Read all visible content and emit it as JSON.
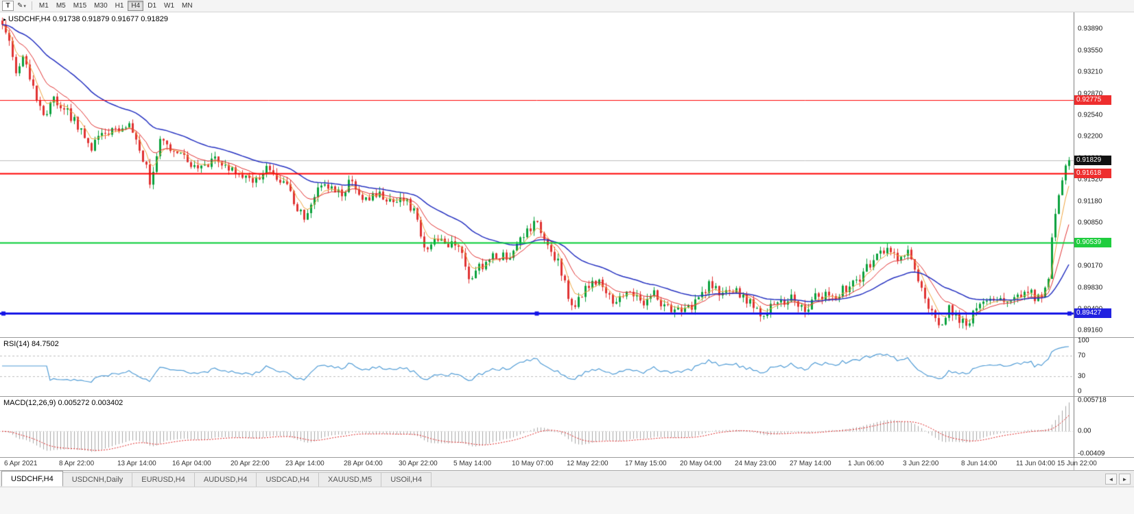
{
  "toolbar": {
    "template_button": "T",
    "draw_tool_glyph": "✎",
    "draw_tool_caret": "▾",
    "timeframes": [
      "M1",
      "M5",
      "M15",
      "M30",
      "H1",
      "H4",
      "D1",
      "W1",
      "MN"
    ],
    "active_timeframe": "H4"
  },
  "chart": {
    "marker": "▸",
    "title": "USDCHF,H4",
    "ohlc_text": "0.91738 0.91879 0.91677 0.91829",
    "hlines": [
      {
        "price": 0.91829,
        "color": "#bcbcbc",
        "width": 1,
        "under": true
      },
      {
        "price": 0.92775,
        "color": "#ff0000",
        "width": 1
      },
      {
        "price": 0.91618,
        "color": "#ff0000",
        "width": 2
      },
      {
        "price": 0.90539,
        "color": "#00cc33",
        "width": 2
      },
      {
        "price": 0.89427,
        "color": "#1414e6",
        "width": 3,
        "handles": true
      }
    ]
  },
  "price_axis": {
    "labels": [
      "0.93890",
      "0.93550",
      "0.93210",
      "0.92870",
      "0.92540",
      "0.92200",
      "0.91860",
      "0.91520",
      "0.91180",
      "0.90850",
      "0.90510",
      "0.90170",
      "0.89830",
      "0.89490",
      "0.89160"
    ],
    "badges": [
      {
        "text": "0.92775",
        "bg": "#ee2e2e",
        "fg": "#ffffff"
      },
      {
        "text": "0.91829",
        "bg": "#111111",
        "fg": "#ffffff"
      },
      {
        "text": "0.91618",
        "bg": "#ee2e2e",
        "fg": "#ffffff"
      },
      {
        "text": "0.90539",
        "bg": "#1fcd3e",
        "fg": "#ffffff"
      },
      {
        "text": "0.89427",
        "bg": "#2222e0",
        "fg": "#ffffff"
      }
    ]
  },
  "rsi": {
    "name": "RSI(14)",
    "value": "84.7502",
    "axis_labels": [
      "100",
      "70",
      "30",
      "0"
    ],
    "levels": [
      70,
      30
    ],
    "line_color": "#4f9bd5"
  },
  "macd": {
    "name": "MACD(12,26,9)",
    "values": "0.005272 0.003402",
    "axis_labels": [
      "0.005718",
      "0.00",
      "-0.00409"
    ],
    "histogram_color": "#a6a6a6",
    "signal_color": "#dd2222",
    "scale": {
      "max": 0.006,
      "min": -0.0045
    }
  },
  "time_axis": {
    "labels": [
      {
        "label": "6 Apr 2021",
        "bar": 1
      },
      {
        "label": "8 Apr 22:00",
        "bar": 17
      },
      {
        "label": "13 Apr 14:00",
        "bar": 34
      },
      {
        "label": "16 Apr 04:00",
        "bar": 50
      },
      {
        "label": "20 Apr 22:00",
        "bar": 67
      },
      {
        "label": "23 Apr 14:00",
        "bar": 83
      },
      {
        "label": "28 Apr 04:00",
        "bar": 100
      },
      {
        "label": "30 Apr 22:00",
        "bar": 116
      },
      {
        "label": "5 May 14:00",
        "bar": 132
      },
      {
        "label": "10 May 07:00",
        "bar": 149
      },
      {
        "label": "12 May 22:00",
        "bar": 165
      },
      {
        "label": "17 May 15:00",
        "bar": 182
      },
      {
        "label": "20 May 04:00",
        "bar": 198
      },
      {
        "label": "24 May 23:00",
        "bar": 214
      },
      {
        "label": "27 May 14:00",
        "bar": 230
      },
      {
        "label": "1 Jun 06:00",
        "bar": 247
      },
      {
        "label": "3 Jun 22:00",
        "bar": 263
      },
      {
        "label": "8 Jun 14:00",
        "bar": 280
      },
      {
        "label": "11 Jun 04:00",
        "bar": 296
      },
      {
        "label": "15 Jun 22:00",
        "bar": 308
      }
    ]
  },
  "tabs": {
    "items": [
      {
        "label": "USDCHF,H4",
        "active": true
      },
      {
        "label": "USDCNH,Daily",
        "active": false
      },
      {
        "label": "EURUSD,H4",
        "active": false
      },
      {
        "label": "AUDUSD,H4",
        "active": false
      },
      {
        "label": "USDCAD,H4",
        "active": false
      },
      {
        "label": "XAUUSD,M5",
        "active": false
      },
      {
        "label": "USOil,H4",
        "active": false
      }
    ],
    "left_arrow": "◄",
    "right_arrow": "►"
  },
  "chart_data": {
    "type": "candlestick",
    "symbol": "USDCHF",
    "timeframe": "H4",
    "bars": 312,
    "bar_spacing": 5,
    "price_scale": {
      "top": 0.9415,
      "bottom": 0.8905
    },
    "last_bar": {
      "open": 0.91738,
      "high": 0.91879,
      "low": 0.91677,
      "close": 0.91829
    },
    "candle_colors": {
      "up": "#0aa13c",
      "down": "#e03232"
    },
    "moving_averages": [
      {
        "period": 5,
        "type": "ema",
        "color": "#eda33c",
        "width": 1
      },
      {
        "period": 12,
        "type": "ema",
        "color": "#e03030",
        "width": 1
      },
      {
        "period": 34,
        "type": "ema",
        "color": "#2430c0",
        "width": 1.5
      }
    ],
    "anchors": [
      [
        0,
        0.9402
      ],
      [
        2,
        0.9368
      ],
      [
        4,
        0.9318
      ],
      [
        6,
        0.9352
      ],
      [
        9,
        0.9296
      ],
      [
        12,
        0.9252
      ],
      [
        15,
        0.928
      ],
      [
        19,
        0.926
      ],
      [
        23,
        0.9228
      ],
      [
        26,
        0.9202
      ],
      [
        29,
        0.9232
      ],
      [
        33,
        0.9226
      ],
      [
        37,
        0.9242
      ],
      [
        40,
        0.9205
      ],
      [
        43,
        0.915
      ],
      [
        46,
        0.921
      ],
      [
        50,
        0.92
      ],
      [
        54,
        0.9178
      ],
      [
        58,
        0.917
      ],
      [
        62,
        0.919
      ],
      [
        66,
        0.9174
      ],
      [
        70,
        0.916
      ],
      [
        74,
        0.915
      ],
      [
        77,
        0.9174
      ],
      [
        80,
        0.915
      ],
      [
        83,
        0.914
      ],
      [
        86,
        0.911
      ],
      [
        88,
        0.9086
      ],
      [
        91,
        0.9128
      ],
      [
        95,
        0.9146
      ],
      [
        99,
        0.9128
      ],
      [
        102,
        0.9155
      ],
      [
        105,
        0.9116
      ],
      [
        109,
        0.913
      ],
      [
        113,
        0.912
      ],
      [
        116,
        0.9126
      ],
      [
        120,
        0.9106
      ],
      [
        123,
        0.904
      ],
      [
        127,
        0.9058
      ],
      [
        130,
        0.9046
      ],
      [
        133,
        0.9052
      ],
      [
        136,
        0.8996
      ],
      [
        139,
        0.9014
      ],
      [
        143,
        0.9034
      ],
      [
        146,
        0.903
      ],
      [
        149,
        0.9038
      ],
      [
        152,
        0.9062
      ],
      [
        156,
        0.9086
      ],
      [
        160,
        0.9045
      ],
      [
        163,
        0.9008
      ],
      [
        166,
        0.895
      ],
      [
        169,
        0.8972
      ],
      [
        172,
        0.8998
      ],
      [
        176,
        0.898
      ],
      [
        179,
        0.8958
      ],
      [
        182,
        0.8984
      ],
      [
        186,
        0.8958
      ],
      [
        190,
        0.8972
      ],
      [
        194,
        0.895
      ],
      [
        198,
        0.8942
      ],
      [
        202,
        0.8958
      ],
      [
        206,
        0.899
      ],
      [
        210,
        0.897
      ],
      [
        214,
        0.8976
      ],
      [
        218,
        0.896
      ],
      [
        221,
        0.8938
      ],
      [
        225,
        0.8956
      ],
      [
        230,
        0.8966
      ],
      [
        234,
        0.895
      ],
      [
        238,
        0.8972
      ],
      [
        242,
        0.8966
      ],
      [
        247,
        0.8986
      ],
      [
        251,
        0.9004
      ],
      [
        255,
        0.9038
      ],
      [
        258,
        0.9046
      ],
      [
        261,
        0.903
      ],
      [
        264,
        0.904
      ],
      [
        267,
        0.899
      ],
      [
        270,
        0.8948
      ],
      [
        273,
        0.8924
      ],
      [
        276,
        0.895
      ],
      [
        279,
        0.893
      ],
      [
        281,
        0.8922
      ],
      [
        284,
        0.8952
      ],
      [
        288,
        0.8966
      ],
      [
        292,
        0.8958
      ],
      [
        296,
        0.8968
      ],
      [
        299,
        0.8976
      ],
      [
        302,
        0.8966
      ],
      [
        304,
        0.8978
      ],
      [
        305,
        0.8992
      ],
      [
        306,
        0.9058
      ],
      [
        307,
        0.9102
      ],
      [
        308,
        0.9124
      ],
      [
        309,
        0.9156
      ],
      [
        310,
        0.9172
      ],
      [
        311,
        0.9183
      ]
    ]
  }
}
